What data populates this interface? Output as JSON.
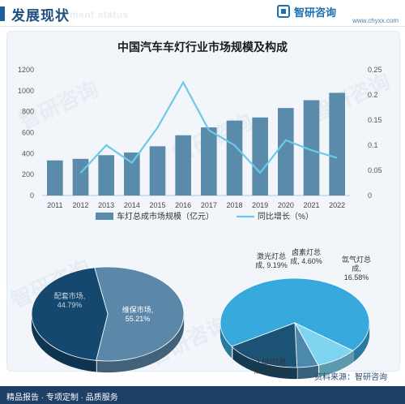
{
  "header": {
    "title": "发展现状",
    "ghost": "ment status",
    "brand_name": "智研咨询",
    "brand_url": "www.chyxx.com"
  },
  "chart_title": "中国汽车车灯行业市场规模及构成",
  "footer": {
    "left": "精品报告 · 专项定制 · 品质服务",
    "source": "资料来源：智研咨询",
    "watermark": "智研咨询"
  },
  "colors": {
    "bar": "#5b8bab",
    "line": "#6cc9e8",
    "pie1_top": "#15486e",
    "pie1_right": "#5b88a8",
    "pie2_led": "#38a9dd",
    "pie2_laser": "#7fd4f0",
    "pie2_halogen": "#4d88ad",
    "pie2_xenon": "#1c5274"
  },
  "chart_data": [
    {
      "type": "bar",
      "categories": [
        "2011",
        "2012",
        "2013",
        "2014",
        "2015",
        "2016",
        "2017",
        "2018",
        "2019",
        "2020",
        "2021",
        "2022"
      ],
      "series": [
        {
          "name": "车灯总成市场规模（亿元）",
          "type": "bar",
          "axis": "left",
          "values": [
            335,
            350,
            385,
            410,
            470,
            575,
            650,
            715,
            745,
            835,
            910,
            980
          ]
        },
        {
          "name": "同比增长（%）",
          "type": "line",
          "axis": "right",
          "values": [
            null,
            0.045,
            0.1,
            0.065,
            0.135,
            0.225,
            0.13,
            0.1,
            0.045,
            0.11,
            0.09,
            0.075
          ]
        }
      ],
      "y_ticks_left": [
        "0",
        "200",
        "400",
        "600",
        "800",
        "1000",
        "1200"
      ],
      "y_ticks_right": [
        "0",
        "0.05",
        "0.1",
        "0.15",
        "0.2",
        "0.25"
      ],
      "ylim_left": [
        0,
        1200
      ],
      "ylim_right": [
        0,
        0.25
      ],
      "legend_position": "bottom"
    },
    {
      "type": "pie",
      "slices": [
        {
          "label": "维保市场,\n55.21%",
          "value": 55.21
        },
        {
          "label": "配套市场,\n44.79%",
          "value": 44.79
        }
      ]
    },
    {
      "type": "pie",
      "slices": [
        {
          "label": "LED灯总\n成, 69.63%",
          "value": 69.63
        },
        {
          "label": "激光灯总\n成, 9.19%",
          "value": 9.19
        },
        {
          "label": "卤素灯总\n成, 4.60%",
          "value": 4.6
        },
        {
          "label": "氙气灯总\n成,\n16.58%",
          "value": 16.58
        }
      ]
    }
  ]
}
